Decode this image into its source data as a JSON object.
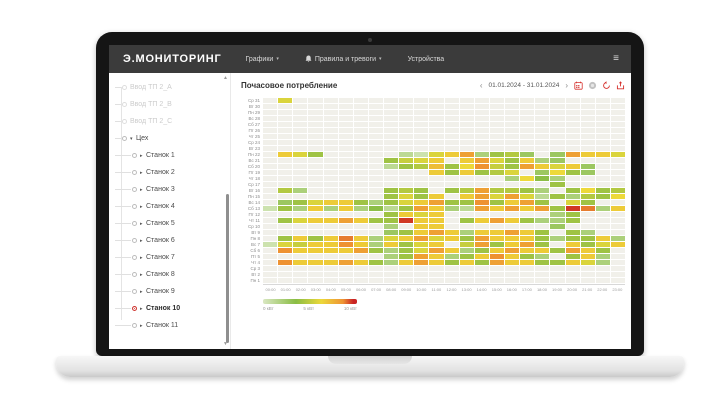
{
  "topbar": {
    "logo": "Э.МОНИТОРИНГ",
    "nav": [
      {
        "label": "Графики",
        "caret": "▾"
      },
      {
        "label": "Правила и тревоги",
        "caret": "▾",
        "icon": "bell"
      },
      {
        "label": "Устройства"
      }
    ],
    "menu_glyph": "≡"
  },
  "sidebar": {
    "disabled_items": [
      "Ввод ТП 2_A",
      "Ввод ТП 2_B",
      "Ввод ТП 2_C"
    ],
    "group": {
      "label": "Цех",
      "caret": "▾"
    },
    "machine_caret": "▸",
    "items": [
      {
        "label": "Станок 1"
      },
      {
        "label": "Станок 2"
      },
      {
        "label": "Станок 3"
      },
      {
        "label": "Станок 4"
      },
      {
        "label": "Станок 5"
      },
      {
        "label": "Станок 6"
      },
      {
        "label": "Станок 7"
      },
      {
        "label": "Станок 8"
      },
      {
        "label": "Станок 9"
      },
      {
        "label": "Станок 10",
        "selected": true
      },
      {
        "label": "Станок 11"
      }
    ],
    "scroll_up_glyph": "▲",
    "scroll_down_glyph": "▼"
  },
  "main": {
    "title": "Почасовое потребление",
    "prev_glyph": "‹",
    "next_glyph": "›",
    "date_range": "01.01.2024 - 31.01.2024"
  },
  "colors": {
    "accent_red": "#d6302c",
    "icon_disabled": "#c2c2c2",
    "topbar_bg": "#3b3b3b",
    "cell_empty": "#f1f0ea"
  },
  "chart_data": {
    "type": "heatmap",
    "title": "Почасовое потребление",
    "unit": "кВт",
    "x_labels": [
      "00:00",
      "01:00",
      "02:00",
      "03:00",
      "04:00",
      "05:00",
      "06:00",
      "07:00",
      "08:00",
      "09:00",
      "10:00",
      "11:00",
      "12:00",
      "13:00",
      "14:00",
      "15:00",
      "16:00",
      "17:00",
      "18:00",
      "19:00",
      "20:00",
      "21:00",
      "22:00",
      "23:00"
    ],
    "y_labels": [
      "Ср 31",
      "Вт 30",
      "Пн 29",
      "Вс 28",
      "Сб 27",
      "Пт 26",
      "Чт 25",
      "Ср 24",
      "Вт 23",
      "Пн 22",
      "Вс 21",
      "Сб 20",
      "Пт 19",
      "Чт 18",
      "Ср 17",
      "Вт 16",
      "Пн 15",
      "Вс 14",
      "Сб 13",
      "Пт 12",
      "Чт 11",
      "Ср 10",
      "Вт 9",
      "Пн 8",
      "Вс 7",
      "Сб 6",
      "Пт 5",
      "Чт 4",
      "Ср 3",
      "Вт 2",
      "Пн 1"
    ],
    "value_range": [
      0,
      10
    ],
    "color_stops": [
      [
        0,
        "#dcebc8"
      ],
      [
        2.5,
        "#8cbe46"
      ],
      [
        5,
        "#edd93a"
      ],
      [
        7.5,
        "#ee9232"
      ],
      [
        10,
        "#c8231f"
      ]
    ],
    "legend": {
      "labels": [
        "0 кВт",
        "5 кВт",
        "10 кВт"
      ],
      "gradient_stops": [
        [
          "#d9e7c2",
          0
        ],
        [
          "#8abd44",
          35
        ],
        [
          "#ecd83a",
          62
        ],
        [
          "#ee9434",
          85
        ],
        [
          "#c92424",
          96
        ],
        [
          "#c92424",
          100
        ]
      ]
    },
    "values": [
      [
        null,
        4.5,
        null,
        null,
        null,
        null,
        null,
        null,
        null,
        null,
        null,
        null,
        null,
        null,
        null,
        null,
        null,
        null,
        null,
        null,
        null,
        null,
        null,
        null
      ],
      [
        null,
        null,
        null,
        null,
        null,
        null,
        null,
        null,
        null,
        null,
        null,
        null,
        null,
        null,
        null,
        null,
        null,
        null,
        null,
        null,
        null,
        null,
        null,
        null
      ],
      [
        null,
        null,
        null,
        null,
        null,
        null,
        null,
        null,
        null,
        null,
        null,
        null,
        null,
        null,
        null,
        null,
        null,
        null,
        null,
        null,
        null,
        null,
        null,
        null
      ],
      [
        null,
        null,
        null,
        null,
        null,
        null,
        null,
        null,
        null,
        null,
        null,
        null,
        null,
        null,
        null,
        null,
        null,
        null,
        null,
        null,
        null,
        null,
        null,
        null
      ],
      [
        null,
        null,
        null,
        null,
        null,
        null,
        null,
        null,
        null,
        null,
        null,
        null,
        null,
        null,
        null,
        null,
        null,
        null,
        null,
        null,
        null,
        null,
        null,
        null
      ],
      [
        null,
        null,
        null,
        null,
        null,
        null,
        null,
        null,
        null,
        null,
        null,
        null,
        null,
        null,
        null,
        null,
        null,
        null,
        null,
        null,
        null,
        null,
        null,
        null
      ],
      [
        null,
        null,
        null,
        null,
        null,
        null,
        null,
        null,
        null,
        null,
        null,
        null,
        null,
        null,
        null,
        null,
        null,
        null,
        null,
        null,
        null,
        null,
        null,
        null
      ],
      [
        null,
        null,
        null,
        null,
        null,
        null,
        null,
        null,
        null,
        null,
        null,
        null,
        null,
        null,
        null,
        null,
        null,
        null,
        null,
        null,
        null,
        null,
        null,
        null
      ],
      [
        null,
        null,
        null,
        null,
        null,
        null,
        null,
        null,
        null,
        null,
        null,
        null,
        null,
        null,
        null,
        null,
        null,
        null,
        null,
        null,
        null,
        null,
        null,
        null
      ],
      [
        null,
        5.5,
        4.5,
        3,
        null,
        null,
        null,
        null,
        null,
        1,
        0.5,
        4.5,
        5.5,
        7,
        1.5,
        3,
        3.5,
        2,
        null,
        2,
        7,
        5.5,
        5.5,
        4.5
      ],
      [
        null,
        null,
        null,
        null,
        null,
        null,
        null,
        null,
        3,
        4,
        4.5,
        5.5,
        null,
        5.5,
        7,
        4.5,
        3,
        5.5,
        1.5,
        2,
        null,
        null,
        null,
        null
      ],
      [
        null,
        null,
        null,
        null,
        null,
        null,
        null,
        null,
        1,
        3,
        3.5,
        6,
        3,
        5,
        7.5,
        4,
        3,
        7,
        5.5,
        4.5,
        5.5,
        2,
        null,
        null
      ],
      [
        null,
        null,
        null,
        null,
        null,
        null,
        null,
        null,
        null,
        null,
        null,
        5.5,
        3,
        5.5,
        3,
        3.5,
        4.5,
        null,
        2,
        5,
        3,
        2,
        null,
        null
      ],
      [
        null,
        null,
        null,
        null,
        null,
        null,
        null,
        null,
        null,
        null,
        null,
        null,
        null,
        null,
        null,
        null,
        1.5,
        5,
        2.5,
        1.5,
        null,
        null,
        null,
        null
      ],
      [
        null,
        null,
        null,
        null,
        null,
        null,
        null,
        null,
        null,
        null,
        null,
        null,
        null,
        null,
        null,
        null,
        null,
        null,
        null,
        3,
        null,
        null,
        null,
        null
      ],
      [
        null,
        3.5,
        1.5,
        null,
        null,
        null,
        null,
        null,
        3,
        3.5,
        3,
        null,
        3,
        3.5,
        7,
        3.5,
        3.5,
        3,
        1.5,
        null,
        3,
        5,
        3,
        3.5
      ],
      [
        null,
        null,
        null,
        null,
        null,
        null,
        null,
        null,
        3,
        4.5,
        3,
        5.5,
        null,
        5.5,
        7,
        4.5,
        7,
        4.5,
        1,
        3,
        1.5,
        3.5,
        3,
        5
      ],
      [
        null,
        2,
        3,
        4.5,
        5.5,
        5.5,
        3,
        1.5,
        3,
        4.5,
        5.5,
        7,
        3,
        3,
        7.5,
        3,
        5.5,
        7,
        3,
        null,
        4.5,
        3,
        null,
        null
      ],
      [
        0.5,
        3,
        1.5,
        5.5,
        1.5,
        5.5,
        1.5,
        2.5,
        1,
        3,
        7,
        5.5,
        1.5,
        1,
        7,
        5.5,
        7,
        5.5,
        7,
        3,
        9.5,
        8,
        1.5,
        5.5
      ],
      [
        null,
        null,
        null,
        null,
        null,
        null,
        null,
        null,
        3,
        5.5,
        4.5,
        5.5,
        null,
        null,
        null,
        null,
        null,
        null,
        null,
        1.5,
        3,
        null,
        null,
        null
      ],
      [
        null,
        3,
        4.5,
        5.5,
        5.5,
        7,
        5.5,
        3,
        3,
        9.5,
        5.5,
        5.5,
        null,
        3,
        5.5,
        7,
        5.5,
        3,
        1.5,
        1.5,
        3,
        null,
        null,
        null
      ],
      [
        null,
        null,
        null,
        null,
        null,
        null,
        null,
        null,
        1.5,
        null,
        5.5,
        5.5,
        null,
        null,
        null,
        null,
        null,
        null,
        null,
        2,
        null,
        null,
        null,
        null
      ],
      [
        null,
        null,
        null,
        null,
        null,
        null,
        null,
        null,
        2,
        3,
        5.5,
        7,
        5.5,
        1.5,
        5.5,
        5.5,
        7,
        5.5,
        3,
        null,
        3,
        1.5,
        null,
        null
      ],
      [
        null,
        3,
        5.5,
        3,
        5.5,
        8,
        5.5,
        1.5,
        4.5,
        5.5,
        7,
        4.5,
        5.5,
        3,
        7,
        5.5,
        5.5,
        5.5,
        3,
        1.5,
        3,
        3,
        5.5,
        1.5
      ],
      [
        0.5,
        4.5,
        4,
        5.5,
        5.5,
        7.5,
        5.5,
        1.5,
        5.5,
        3,
        4.5,
        5.5,
        null,
        4,
        7,
        3,
        5.5,
        7,
        3,
        null,
        5.5,
        3,
        4.5,
        5.5
      ],
      [
        null,
        7.5,
        5.5,
        5.5,
        5.5,
        5.5,
        7,
        3,
        1.5,
        3,
        4.5,
        7,
        5.5,
        1.5,
        3,
        5.5,
        7,
        5.5,
        5.5,
        3,
        7,
        5.5,
        3,
        null
      ],
      [
        null,
        null,
        null,
        null,
        null,
        null,
        null,
        null,
        1.5,
        3,
        7,
        5.5,
        1.5,
        3,
        5.5,
        7.5,
        5.5,
        3,
        1.5,
        null,
        3,
        5.5,
        1.5,
        null
      ],
      [
        null,
        7.5,
        5.5,
        5.5,
        5.5,
        7,
        5.5,
        3,
        1.5,
        5.5,
        7,
        5.5,
        3,
        5.5,
        3,
        7,
        5.5,
        5.5,
        3,
        3,
        5.5,
        4.5,
        1.5,
        null
      ],
      [
        null,
        null,
        null,
        null,
        null,
        null,
        null,
        null,
        null,
        null,
        null,
        null,
        null,
        null,
        null,
        null,
        null,
        null,
        null,
        null,
        null,
        null,
        null,
        null
      ],
      [
        null,
        null,
        null,
        null,
        null,
        null,
        null,
        null,
        null,
        null,
        null,
        null,
        null,
        null,
        null,
        null,
        null,
        null,
        null,
        null,
        null,
        null,
        null,
        null
      ],
      [
        null,
        null,
        null,
        null,
        null,
        null,
        null,
        null,
        null,
        null,
        null,
        null,
        null,
        null,
        null,
        null,
        null,
        null,
        null,
        null,
        null,
        null,
        null,
        null
      ]
    ]
  }
}
